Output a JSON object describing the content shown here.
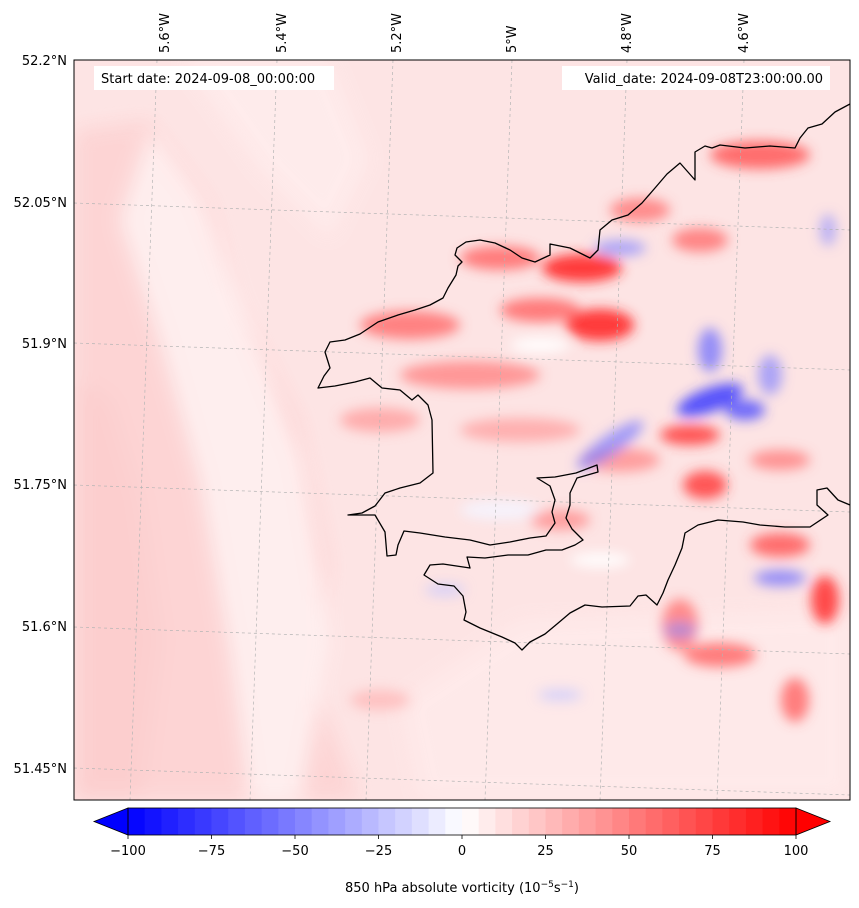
{
  "header": {
    "start_date": "Start date: 2024-09-08_00:00:00",
    "valid_date": "Valid_date: 2024-09-08T23:00:00.00"
  },
  "axes": {
    "lon_labels": [
      "5.6°W",
      "5.4°W",
      "5.2°W",
      "5°W",
      "4.8°W",
      "4.6°W"
    ],
    "lat_labels": [
      "52.2°N",
      "52.05°N",
      "51.9°N",
      "51.75°N",
      "51.6°N",
      "51.45°N"
    ]
  },
  "colorbar": {
    "ticks": [
      "−100",
      "−75",
      "−50",
      "−25",
      "0",
      "25",
      "50",
      "75",
      "100"
    ],
    "min": -100,
    "max": 100,
    "label_main": "850 hPa absolute vorticity (10",
    "label_exp1": "−5",
    "label_mid": "s",
    "label_exp2": "−1",
    "label_end": ")",
    "neg_color": "#0000ff",
    "pos_color": "#ff0000"
  },
  "colors": {
    "background_field": "#fde2e2",
    "coastline": "#000000",
    "gridline": "#b4b4b4"
  }
}
